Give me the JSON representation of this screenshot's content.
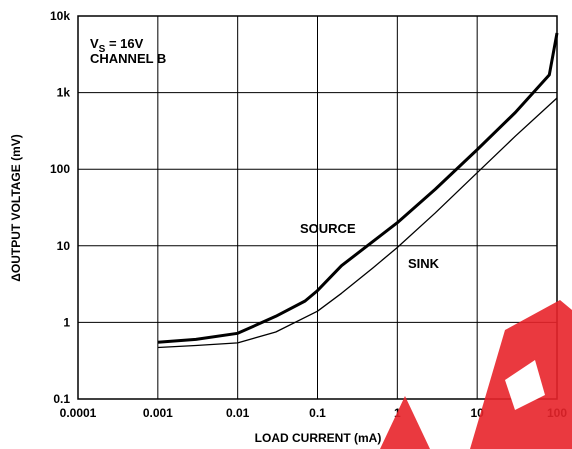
{
  "chart_data": {
    "type": "line",
    "xlabel": "LOAD CURRENT (mA)",
    "ylabel": "ΔOUTPUT VOLTAGE (mV)",
    "xscale": "log",
    "yscale": "log",
    "xlim": [
      0.0001,
      100
    ],
    "ylim": [
      0.1,
      10000
    ],
    "grid": true,
    "x_tick_labels": [
      "0.0001",
      "0.001",
      "0.01",
      "0.1",
      "1",
      "10",
      "100"
    ],
    "y_tick_labels": [
      "0.1",
      "1",
      "10",
      "100",
      "1k",
      "10k"
    ],
    "x_tick_values": [
      0.0001,
      0.001,
      0.01,
      0.1,
      1,
      10,
      100
    ],
    "y_tick_values": [
      0.1,
      1,
      10,
      100,
      1000,
      10000
    ],
    "annotation_line1_main": "V",
    "annotation_line1_sub": "S",
    "annotation_line1_rest": " = 16V",
    "annotation_line2": "CHANNEL B",
    "series": [
      {
        "name": "SOURCE",
        "x": [
          0.001,
          0.003,
          0.01,
          0.03,
          0.07,
          0.1,
          0.2,
          0.5,
          1,
          3,
          10,
          30,
          80,
          100
        ],
        "y": [
          0.55,
          0.6,
          0.72,
          1.2,
          1.9,
          2.6,
          5.5,
          11.5,
          20,
          55,
          180,
          550,
          1700,
          6000
        ]
      },
      {
        "name": "SINK",
        "x": [
          0.001,
          0.003,
          0.01,
          0.03,
          0.1,
          0.2,
          0.5,
          1,
          3,
          10,
          30,
          100
        ],
        "y": [
          0.47,
          0.5,
          0.54,
          0.75,
          1.4,
          2.4,
          5.2,
          9.5,
          27,
          90,
          270,
          850
        ]
      }
    ]
  }
}
